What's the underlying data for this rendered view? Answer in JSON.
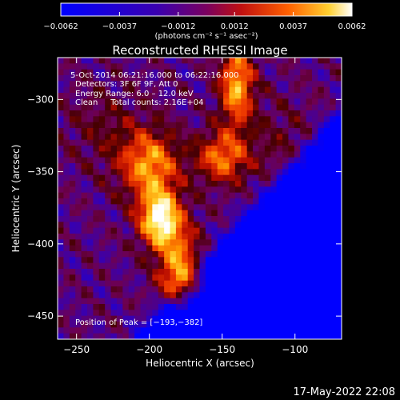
{
  "chart_data": {
    "type": "heatmap",
    "title": "Reconstructed RHESSI Image",
    "xlabel": "Heliocentric X (arcsec)",
    "ylabel": "Heliocentric Y (arcsec)",
    "xlim": [
      -263,
      -68
    ],
    "ylim": [
      -466,
      -271
    ],
    "xticks": [
      -250,
      -200,
      -150,
      -100
    ],
    "yticks": [
      -300,
      -350,
      -400,
      -450
    ],
    "xtick_labels": [
      "−250",
      "−200",
      "−150",
      "−100"
    ],
    "ytick_labels": [
      "−300",
      "−350",
      "−400",
      "−450"
    ],
    "colorbar": {
      "min": -0.0062,
      "max": 0.0062,
      "ticks": [
        -0.0062,
        -0.0037,
        -0.0012,
        0.0012,
        0.0037,
        0.0062
      ],
      "tick_labels": [
        "−0.0062",
        "−0.0037",
        "−0.0012",
        "0.0012",
        "0.0037",
        "0.0062"
      ],
      "units_label": "(photons cm⁻² s⁻¹ asec⁻²)"
    },
    "annotations": {
      "time": "5‐Oct‐2014 06:21:16.000 to 06:22:16.000",
      "detectors": "Detectors: 3F 6F 9F, Att 0",
      "energy": "Energy Range: 6.0 – 12.0 keV",
      "method": "Clean     Total counts: 2.16E+04",
      "peak": "Position of Peak = [−193,−382]"
    },
    "peak": [
      -193,
      -382
    ],
    "grid": false
  },
  "footer": {
    "timestamp": "17‐May‐2022 22:08"
  }
}
